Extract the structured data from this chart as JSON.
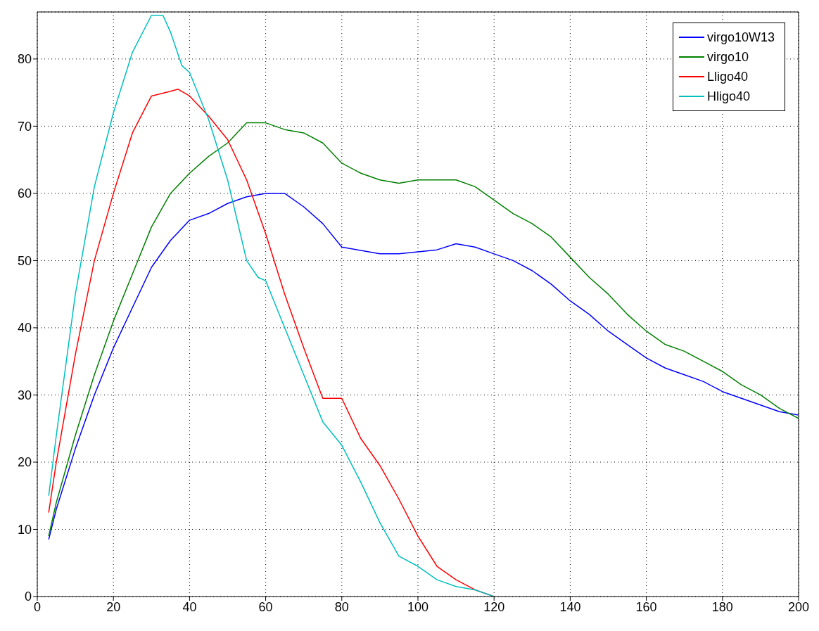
{
  "chart_data": {
    "type": "line",
    "xlim": [
      0,
      200
    ],
    "xticks": [
      0,
      20,
      40,
      60,
      80,
      100,
      120,
      140,
      160,
      180,
      200
    ],
    "ylim": [
      0,
      87
    ],
    "yticks": [
      0,
      10,
      20,
      30,
      40,
      50,
      60,
      70,
      80
    ],
    "grid": true,
    "legend": "top right",
    "series": [
      {
        "name": "virgo10W13",
        "color": "#0000ff",
        "x": [
          3,
          5,
          10,
          15,
          20,
          25,
          30,
          35,
          40,
          45,
          50,
          55,
          60,
          65,
          70,
          75,
          80,
          85,
          90,
          95,
          100,
          105,
          110,
          115,
          120,
          125,
          130,
          135,
          140,
          145,
          150,
          155,
          160,
          165,
          170,
          175,
          180,
          185,
          190,
          195,
          200
        ],
        "values": [
          8.5,
          13,
          22,
          30,
          37,
          43,
          49,
          53,
          56,
          57,
          58.5,
          59.5,
          60,
          60,
          58,
          55.5,
          52,
          51.5,
          51,
          51,
          51.3,
          51.6,
          52.5,
          52,
          51,
          50,
          48.5,
          46.5,
          44,
          42,
          39.5,
          37.5,
          35.5,
          34,
          33,
          32,
          30.5,
          29.5,
          28.5,
          27.5,
          27
        ]
      },
      {
        "name": "virgo10",
        "color": "#008000",
        "x": [
          3,
          5,
          10,
          15,
          20,
          25,
          30,
          35,
          40,
          45,
          50,
          55,
          60,
          65,
          70,
          75,
          80,
          85,
          90,
          95,
          100,
          105,
          110,
          115,
          120,
          125,
          130,
          135,
          140,
          145,
          150,
          155,
          160,
          165,
          170,
          175,
          180,
          185,
          190,
          195,
          200
        ],
        "values": [
          9,
          14,
          24,
          33,
          41,
          48,
          55,
          60,
          63,
          65.5,
          67.5,
          70.5,
          70.5,
          69.5,
          69,
          67.5,
          64.5,
          63,
          62,
          61.5,
          62,
          62,
          62,
          61,
          59,
          57,
          55.5,
          53.5,
          50.5,
          47.5,
          45,
          42,
          39.5,
          37.5,
          36.5,
          35,
          33.5,
          31.5,
          30,
          28,
          26.5
        ]
      },
      {
        "name": "Lligo40",
        "color": "#ff0000",
        "x": [
          3,
          5,
          10,
          15,
          20,
          25,
          30,
          35,
          37,
          40,
          45,
          50,
          55,
          60,
          65,
          70,
          75,
          80,
          85,
          90,
          95,
          100,
          105,
          110,
          115,
          120
        ],
        "values": [
          12.5,
          20,
          36,
          50,
          60,
          69,
          74.5,
          75.2,
          75.5,
          74.5,
          71.5,
          68,
          62,
          54,
          45,
          37,
          29.5,
          29.5,
          23.5,
          19.5,
          14.5,
          9,
          4.5,
          2.5,
          1,
          0
        ]
      },
      {
        "name": "Hligo40",
        "color": "#00bfbf",
        "x": [
          3,
          5,
          10,
          15,
          20,
          25,
          30,
          33,
          35,
          38,
          40,
          45,
          50,
          55,
          58,
          60,
          65,
          70,
          75,
          80,
          85,
          90,
          95,
          100,
          105,
          110,
          115,
          120
        ],
        "values": [
          15,
          24,
          45,
          61,
          72,
          81,
          86.5,
          86.5,
          84,
          79,
          78,
          71,
          62,
          50,
          47.5,
          47,
          40,
          33,
          26,
          22.5,
          17,
          11,
          6,
          4.5,
          2.5,
          1.5,
          1,
          0
        ]
      }
    ]
  }
}
